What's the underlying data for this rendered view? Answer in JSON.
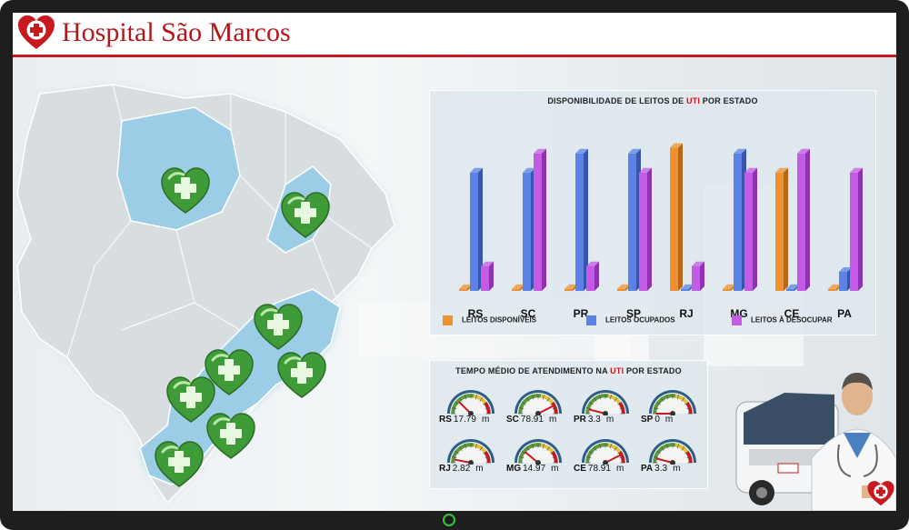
{
  "header": {
    "title": "Hospital São Marcos"
  },
  "colors": {
    "accent": "#c8191e",
    "disponiveis": "#f0912e",
    "ocupados": "#5b82e6",
    "desocupar": "#c45ae6",
    "map_highlight": "#9ccde6",
    "map_base": "#d8dde0"
  },
  "map": {
    "markers": [
      "heart-cross-icon",
      "heart-cross-icon",
      "heart-cross-icon",
      "heart-cross-icon",
      "heart-cross-icon",
      "heart-cross-icon",
      "heart-cross-icon",
      "heart-cross-icon"
    ]
  },
  "bar_panel": {
    "title_pre": "DISPONIBILIDADE DE LEITOS DE ",
    "title_hl": "UTI",
    "title_post": " POR ESTADO"
  },
  "chart_data": {
    "type": "bar",
    "categories": [
      "RS",
      "SC",
      "PR",
      "SP",
      "RJ",
      "MG",
      "CE",
      "PA"
    ],
    "series": [
      {
        "name": "LEITOS DISPONÍVEIS",
        "values": [
          1,
          1,
          1,
          1,
          75,
          1,
          62,
          1
        ]
      },
      {
        "name": "LEITOS OCUPADOS",
        "values": [
          62,
          62,
          72,
          72,
          1,
          72,
          1,
          10
        ]
      },
      {
        "name": "LEITOS À DESOCUPAR",
        "values": [
          13,
          72,
          13,
          62,
          13,
          62,
          72,
          62
        ]
      }
    ],
    "ylim": [
      0,
      80
    ]
  },
  "gauge_panel": {
    "title_pre": "TEMPO MÉDIO DE ATENDIMENTO NA ",
    "title_hl": "UTI",
    "title_post": " POR ESTADO",
    "unit": "m",
    "gauges": [
      {
        "state": "RS",
        "value": "17.79",
        "needle": 0.25
      },
      {
        "state": "SC",
        "value": "78.91",
        "needle": 0.85
      },
      {
        "state": "PR",
        "value": "3.3",
        "needle": 0.08
      },
      {
        "state": "SP",
        "value": "0",
        "needle": 0.0
      },
      {
        "state": "RJ",
        "value": "2.82",
        "needle": 0.06
      },
      {
        "state": "MG",
        "value": "14.97",
        "needle": 0.22
      },
      {
        "state": "CE",
        "value": "78.91",
        "needle": 0.85
      },
      {
        "state": "PA",
        "value": "3.3",
        "needle": 0.08
      }
    ]
  }
}
